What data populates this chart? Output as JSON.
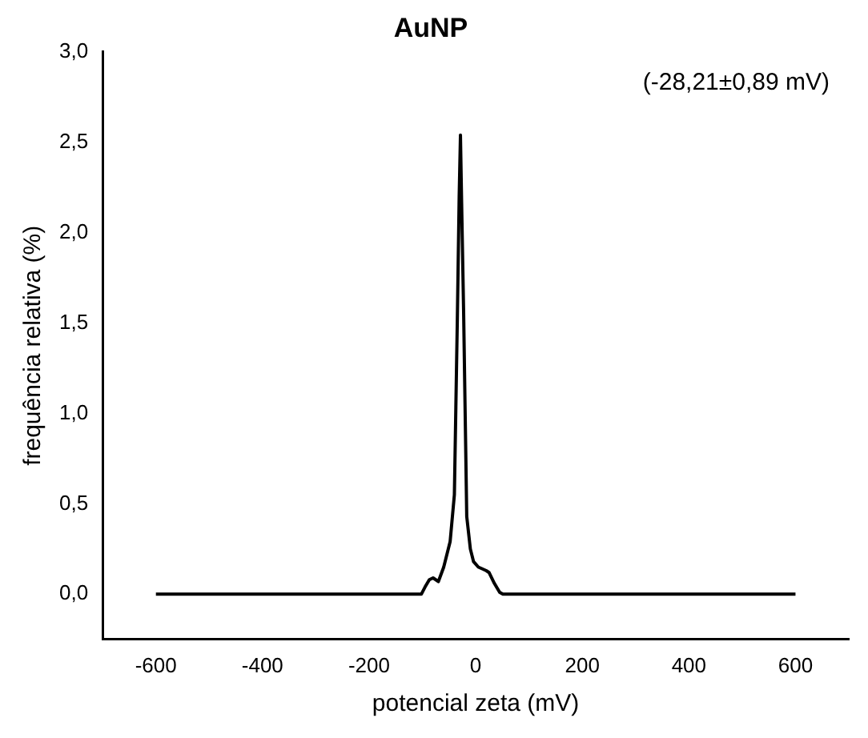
{
  "chart_data": {
    "type": "line",
    "title": "AuNP",
    "xlabel": "potencial zeta (mV)",
    "ylabel": "frequência relativa (%)",
    "annotations": [
      "(-28,21±0,89 mV)"
    ],
    "series": [
      {
        "color": "#000000",
        "x": [
          -600,
          -300,
          -102,
          -95,
          -87,
          -80,
          -70,
          -60,
          -48,
          -40,
          -34.5,
          -31,
          -28.6,
          -26,
          -22.7,
          -16.8,
          -10,
          -4,
          5,
          12.7,
          20,
          25,
          35,
          45,
          51,
          300,
          600
        ],
        "values": [
          0,
          0,
          0,
          0.04,
          0.08,
          0.09,
          0.07,
          0.15,
          0.29,
          0.55,
          1.51,
          2.2,
          2.54,
          2.1,
          1.57,
          0.43,
          0.25,
          0.18,
          0.15,
          0.14,
          0.13,
          0.12,
          0.06,
          0.01,
          0,
          0,
          0
        ]
      }
    ],
    "xlim": [
      -700,
      700
    ],
    "xticks": [
      -600,
      -400,
      -200,
      0,
      200,
      400,
      600
    ],
    "ylim": [
      -0.25,
      3.0
    ],
    "yticks": [
      {
        "value": 0,
        "label": "0,0"
      },
      {
        "value": 0.5,
        "label": "0,5"
      },
      {
        "value": 1,
        "label": "1,0"
      },
      {
        "value": 1.5,
        "label": "1,5"
      },
      {
        "value": 2,
        "label": "2,0"
      },
      {
        "value": 2.5,
        "label": "2,5"
      },
      {
        "value": 3,
        "label": "3,0"
      }
    ],
    "grid": false,
    "legend": false,
    "marker": "none",
    "line_style": "solid"
  }
}
